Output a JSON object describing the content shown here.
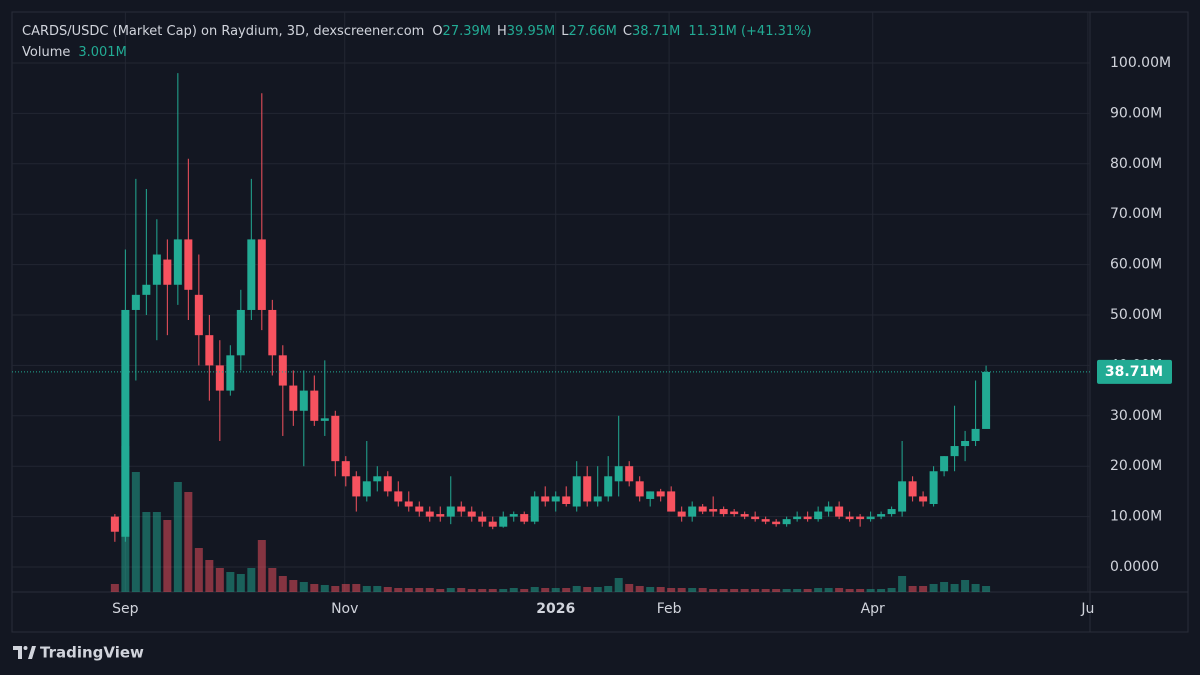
{
  "chart_data": {
    "type": "candlestick",
    "legend": {
      "symbol": "CARDS/USDC (Market Cap) on Raydium, 3D, dexscreener.com",
      "items": [
        [
          "O",
          "27.39M"
        ],
        [
          "H",
          "39.95M"
        ],
        [
          "L",
          "27.66M"
        ],
        [
          "C",
          "38.71M"
        ]
      ],
      "change": "11.31M (+41.31%)",
      "volume_name": "Volume",
      "volume_value": "3.001M"
    },
    "up_color": "#22ab94",
    "down_color": "#f7525f",
    "open": [
      10,
      6,
      51,
      54,
      56,
      61,
      56,
      65,
      54,
      46,
      40,
      35,
      42,
      51,
      65,
      51,
      42,
      36,
      31,
      35,
      29,
      30,
      21,
      18,
      14,
      17,
      18,
      15,
      13,
      12,
      11,
      10.5,
      10,
      12,
      11,
      10,
      9,
      8,
      10,
      10.5,
      9,
      14,
      13,
      14,
      12,
      18,
      13,
      14,
      17,
      20,
      17,
      13.5,
      15,
      15,
      11,
      10,
      12,
      11.5,
      11.5,
      11,
      10.5,
      10,
      9.5,
      9,
      8.5,
      9.5,
      10,
      9.5,
      11,
      12,
      10,
      10,
      9.5,
      10,
      10.5,
      11,
      17,
      14,
      12.5,
      19,
      22,
      24,
      25,
      27.39
    ],
    "high": [
      10.5,
      63,
      77,
      75,
      69,
      65,
      98,
      81,
      62,
      50,
      45,
      44,
      55,
      77,
      94,
      53,
      44,
      39,
      39,
      38,
      41,
      31,
      22,
      19,
      25,
      20,
      19,
      17,
      15,
      13,
      12,
      12,
      18,
      13,
      12,
      11,
      10,
      11,
      11,
      11,
      15,
      16,
      15,
      16,
      21,
      20,
      20,
      22,
      30,
      21,
      18,
      15,
      15.5,
      16,
      12,
      13,
      12.5,
      14,
      12,
      11.5,
      11,
      11,
      10,
      9.5,
      10,
      11,
      11,
      12,
      13,
      13,
      11,
      10.5,
      11,
      11,
      12,
      25,
      18,
      15,
      20,
      22,
      32,
      27,
      37,
      39.95
    ],
    "low": [
      5,
      5,
      37,
      50,
      45,
      46,
      52,
      49,
      40,
      33,
      25,
      34,
      39,
      49,
      47,
      38,
      26,
      28,
      20,
      28,
      26,
      18,
      16,
      11,
      13,
      15,
      14,
      12,
      11,
      10,
      9,
      9,
      8.5,
      10,
      9,
      8,
      7.5,
      7.8,
      9,
      8.5,
      8.5,
      12,
      11,
      12,
      11,
      12,
      12,
      13,
      14,
      16,
      13,
      12,
      13,
      11,
      9,
      9,
      10.5,
      10,
      10,
      10,
      9.5,
      9,
      8.5,
      8,
      8,
      9,
      9,
      9,
      10,
      9.5,
      9,
      8,
      9,
      9.5,
      10,
      10,
      13,
      12,
      12,
      18,
      19,
      21,
      24,
      27.66
    ],
    "close": [
      7,
      51,
      54,
      56,
      62,
      56,
      65,
      55,
      46,
      40,
      35,
      42,
      51,
      65,
      51,
      42,
      36,
      31,
      35,
      29,
      29.5,
      21,
      18,
      14,
      17,
      18,
      15,
      13,
      12,
      11,
      10,
      10,
      12,
      11,
      10,
      9,
      8,
      10,
      10.5,
      9,
      14,
      13,
      14,
      12.5,
      18,
      13,
      14,
      18,
      20,
      17,
      14,
      15,
      14,
      11,
      10,
      12,
      11,
      11,
      10.5,
      10.5,
      10,
      9.5,
      9,
      8.5,
      9.5,
      10,
      9.5,
      11,
      12,
      10,
      9.5,
      9.5,
      10,
      10.5,
      11.5,
      17,
      14,
      13,
      19,
      22,
      24,
      25,
      27.4,
      38.71
    ],
    "volume": [
      4,
      73,
      60,
      40,
      40,
      36,
      55,
      50,
      22,
      16,
      12,
      10,
      9,
      12,
      26,
      12,
      8,
      6,
      5,
      4,
      3.5,
      3,
      4,
      4,
      3,
      3,
      2.5,
      2,
      2,
      2,
      2,
      1.5,
      2,
      2,
      1.5,
      1.5,
      1.5,
      1.5,
      2,
      1.5,
      2.5,
      2,
      2,
      2,
      3,
      2.5,
      2.5,
      3,
      7,
      4,
      3,
      2.5,
      2.5,
      2,
      2,
      2,
      2,
      1.5,
      1.5,
      1.5,
      1.5,
      1.5,
      1.5,
      1.5,
      1.5,
      1.5,
      1.5,
      2,
      2,
      2,
      1.5,
      1.5,
      1.5,
      1.5,
      2,
      8,
      3,
      3,
      4,
      5,
      4,
      6,
      4,
      3.001
    ],
    "volume_lim": [
      0,
      290
    ],
    "xlim": [
      -9.8,
      92.9
    ],
    "xticks": [
      {
        "value": 1,
        "label": "Sep"
      },
      {
        "value": 21.9,
        "label": "Nov"
      },
      {
        "value": 42,
        "label": "2026"
      },
      {
        "value": 52.8,
        "label": "Feb"
      },
      {
        "value": 72.2,
        "label": "Apr"
      },
      {
        "value": 92.7,
        "label": "Ju"
      }
    ],
    "ylim": [
      -4.96,
      110.12
    ],
    "yticks": [
      {
        "value": 0,
        "label": "0.0000"
      },
      {
        "value": 10,
        "label": "10.00M"
      },
      {
        "value": 20,
        "label": "20.00M"
      },
      {
        "value": 30,
        "label": "30.00M"
      },
      {
        "value": 40,
        "label": "40.00M"
      },
      {
        "value": 50,
        "label": "50.00M"
      },
      {
        "value": 60,
        "label": "60.00M"
      },
      {
        "value": 70,
        "label": "70.00M"
      },
      {
        "value": 80,
        "label": "80.00M"
      },
      {
        "value": 90,
        "label": "90.00M"
      },
      {
        "value": 100,
        "label": "100.00M"
      }
    ],
    "last_price": {
      "value": 38.71,
      "label": "38.71M"
    },
    "grid": true,
    "brand": "TradingView"
  }
}
